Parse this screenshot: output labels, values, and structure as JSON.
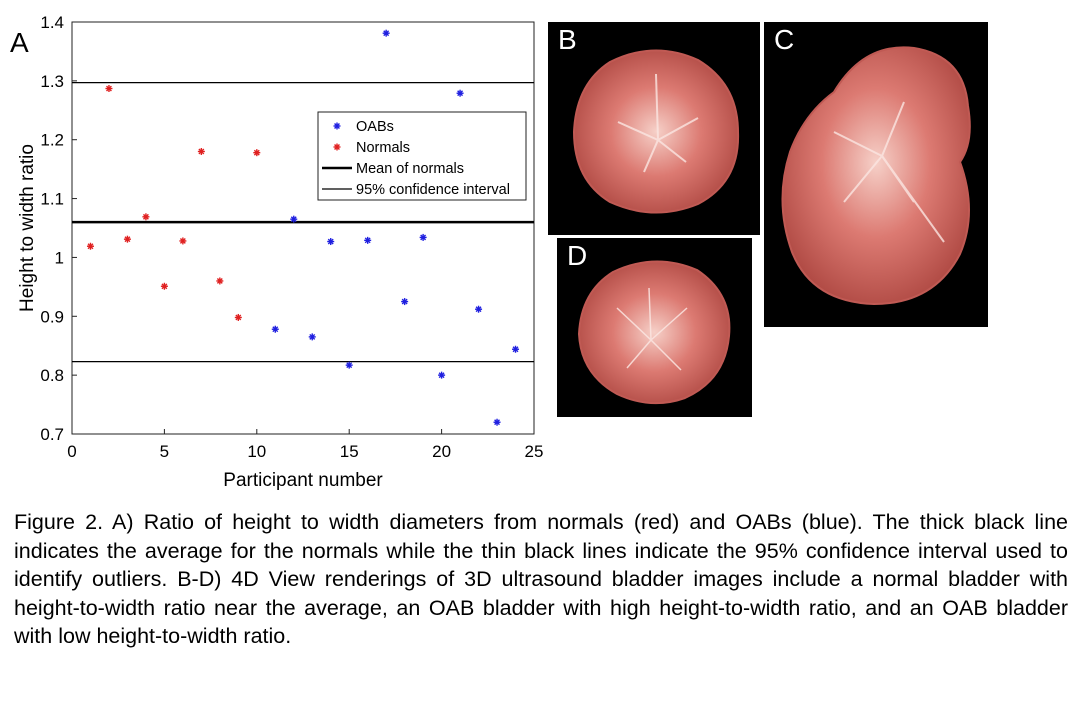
{
  "figure_label": "A",
  "chart_data": {
    "type": "scatter",
    "xlabel": "Participant number",
    "ylabel": "Height to width ratio",
    "xlim": [
      0,
      25
    ],
    "ylim": [
      0.7,
      1.4
    ],
    "xticks": [
      0,
      5,
      10,
      15,
      20,
      25
    ],
    "yticks": [
      0.7,
      0.8,
      0.9,
      1.0,
      1.1,
      1.2,
      1.3,
      1.4
    ],
    "ytick_labels": [
      "0.7",
      "0.8",
      "0.9",
      "1",
      "1.1",
      "1.2",
      "1.3",
      "1.4"
    ],
    "legend_position": "top-right",
    "series": [
      {
        "name": "OABs",
        "color": "#1f1fe0",
        "marker": "asterisk",
        "x": [
          11,
          12,
          13,
          14,
          15,
          16,
          17,
          18,
          19,
          20,
          21,
          22,
          23,
          24
        ],
        "y": [
          0.878,
          1.065,
          0.865,
          1.027,
          0.817,
          1.029,
          1.381,
          0.925,
          1.034,
          0.8,
          1.279,
          0.912,
          0.72,
          0.844
        ]
      },
      {
        "name": "Normals",
        "color": "#e02020",
        "marker": "asterisk",
        "x": [
          1,
          2,
          3,
          4,
          5,
          6,
          7,
          8,
          9,
          10
        ],
        "y": [
          1.019,
          1.287,
          1.031,
          1.069,
          0.951,
          1.028,
          1.18,
          0.96,
          0.898,
          1.178
        ]
      }
    ],
    "reference_lines": [
      {
        "name": "Mean of normals",
        "y": 1.06,
        "style": "thick"
      },
      {
        "name": "95% confidence interval",
        "y": 1.297,
        "style": "thin"
      },
      {
        "name": "95% confidence interval",
        "y": 0.823,
        "style": "thin"
      }
    ]
  },
  "panels": [
    {
      "letter": "B"
    },
    {
      "letter": "C"
    },
    {
      "letter": "D"
    }
  ],
  "caption": "Figure 2. A) Ratio of height to width diameters from normals (red) and OABs (blue). The thick black line indicates the average for the normals while the thin black lines indicate the 95% confidence interval used to identify outliers. B-D) 4D View renderings of 3D ultrasound bladder images include a normal bladder with height-to-width ratio near the average, an OAB bladder with high height-to-width ratio, and an OAB bladder with low height-to-width ratio."
}
